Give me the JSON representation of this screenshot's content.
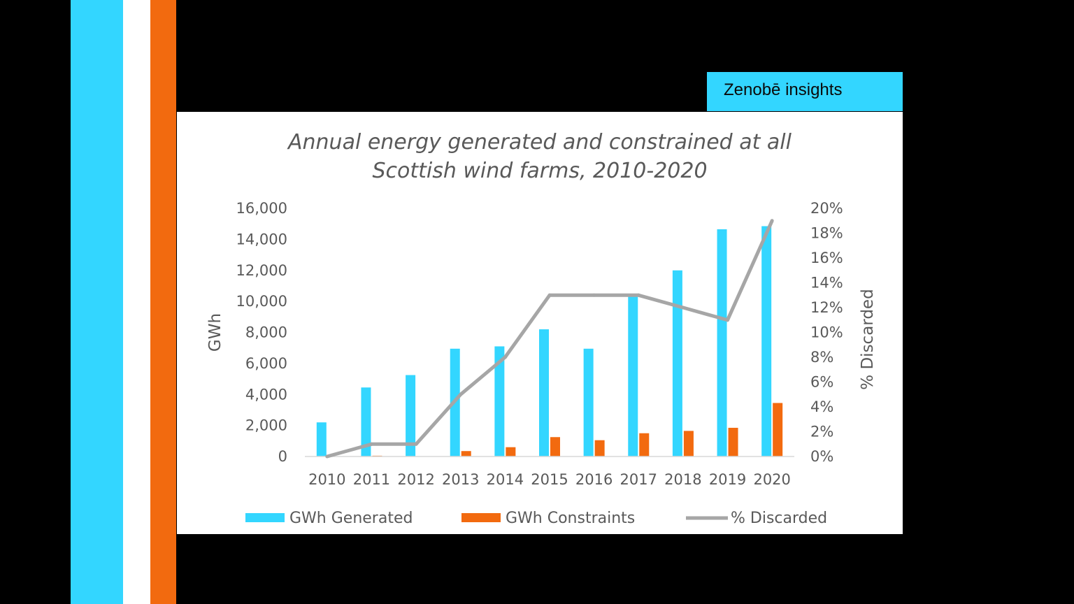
{
  "brand": {
    "label": "Zenobē insights"
  },
  "colors": {
    "blue": "#33d6ff",
    "orange": "#f26a0f",
    "white": "#ffffff",
    "line": "#a6a6a6"
  },
  "chart_data": {
    "type": "bar",
    "title_lines": [
      "Annual energy generated and constrained at all",
      "Scottish wind farms, 2010-2020"
    ],
    "categories": [
      "2010",
      "2011",
      "2012",
      "2013",
      "2014",
      "2015",
      "2016",
      "2017",
      "2018",
      "2019",
      "2020"
    ],
    "series": [
      {
        "name": "GWh Generated",
        "type": "bar",
        "axis": "left",
        "color": "#33d6ff",
        "values": [
          2200,
          4450,
          5250,
          6950,
          7100,
          8200,
          6950,
          10400,
          12000,
          14650,
          14850
        ]
      },
      {
        "name": "GWh Constraints",
        "type": "bar",
        "axis": "left",
        "color": "#f26a0f",
        "values": [
          0,
          50,
          0,
          350,
          600,
          1250,
          1050,
          1500,
          1650,
          1850,
          3450
        ]
      },
      {
        "name": "% Discarded",
        "type": "line",
        "axis": "right",
        "color": "#a6a6a6",
        "values": [
          0,
          1,
          1,
          5,
          8,
          13,
          13,
          13,
          12,
          11,
          19
        ]
      }
    ],
    "y_left": {
      "label": "GWh",
      "ylim": [
        0,
        16000
      ],
      "ticks": [
        "0",
        "2,000",
        "4,000",
        "6,000",
        "8,000",
        "10,000",
        "12,000",
        "14,000",
        "16,000"
      ]
    },
    "y_right": {
      "label": "% Discarded",
      "ylim": [
        0,
        20
      ],
      "ticks": [
        "0%",
        "2%",
        "4%",
        "6%",
        "8%",
        "10%",
        "12%",
        "14%",
        "16%",
        "18%",
        "20%"
      ]
    },
    "legend_position": "bottom",
    "grid": false
  }
}
